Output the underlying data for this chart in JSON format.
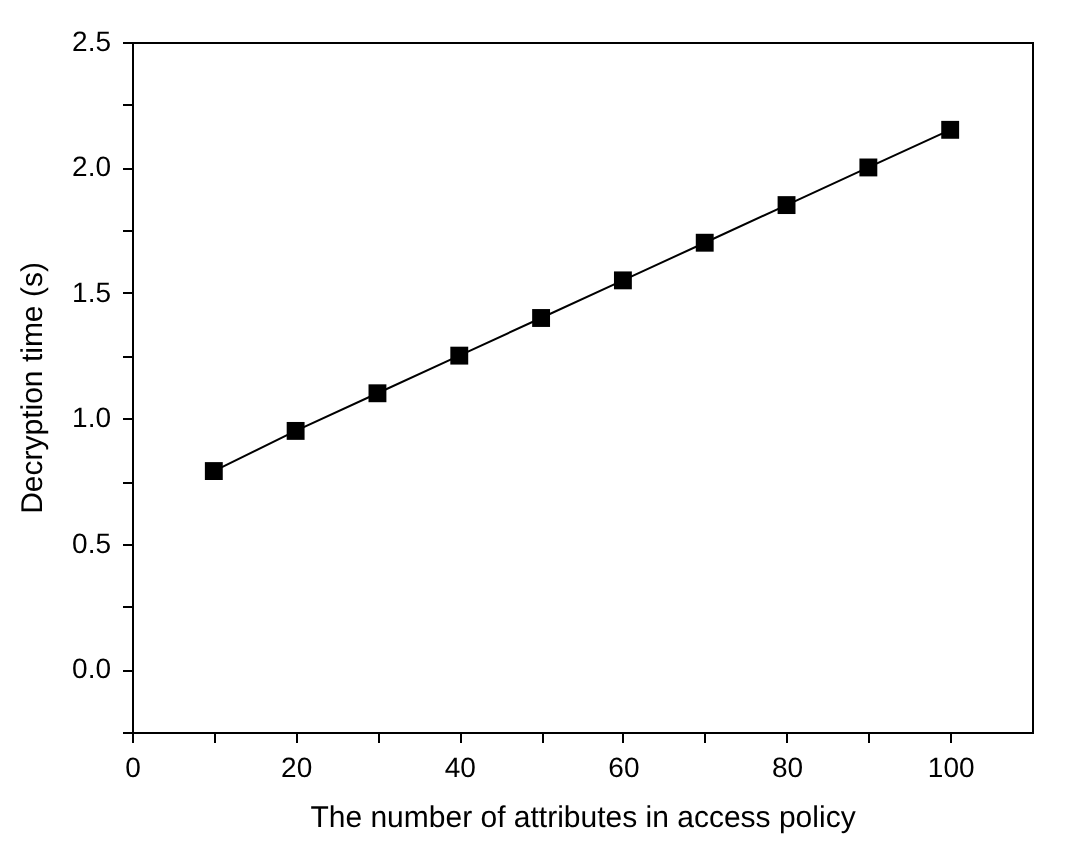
{
  "chart_data": {
    "type": "line",
    "xlabel": "The number of attributes in access policy",
    "ylabel": "Decryption time (s)",
    "x": [
      10,
      20,
      30,
      40,
      50,
      60,
      70,
      80,
      90,
      100
    ],
    "series": [
      {
        "color": "#000000",
        "values": [
          0.79,
          0.95,
          1.1,
          1.25,
          1.4,
          1.55,
          1.7,
          1.85,
          2.0,
          2.15
        ]
      }
    ],
    "marker": "square",
    "line_style": "solid",
    "xlim": [
      0,
      110
    ],
    "xticks": [
      0,
      {
        "value": 10,
        "label": null
      },
      20,
      {
        "value": 30,
        "label": null
      },
      40,
      {
        "value": 50,
        "label": null
      },
      60,
      {
        "value": 70,
        "label": null
      },
      80,
      {
        "value": 90,
        "label": null
      },
      100
    ],
    "ylim": [
      -0.25,
      2.5
    ],
    "yticks": [
      {
        "value": -0.25,
        "label": null
      },
      {
        "value": 0,
        "label": "0.0"
      },
      {
        "value": 0.25,
        "label": null
      },
      {
        "value": 0.5,
        "label": "0.5"
      },
      {
        "value": 0.75,
        "label": null
      },
      {
        "value": 1,
        "label": "1.0"
      },
      {
        "value": 1.25,
        "label": null
      },
      {
        "value": 1.5,
        "label": "1.5"
      },
      {
        "value": 1.75,
        "label": null
      },
      {
        "value": 2,
        "label": "2.0"
      },
      {
        "value": 2.25,
        "label": null
      },
      {
        "value": 2.5,
        "label": "2.5"
      }
    ],
    "grid": false
  }
}
